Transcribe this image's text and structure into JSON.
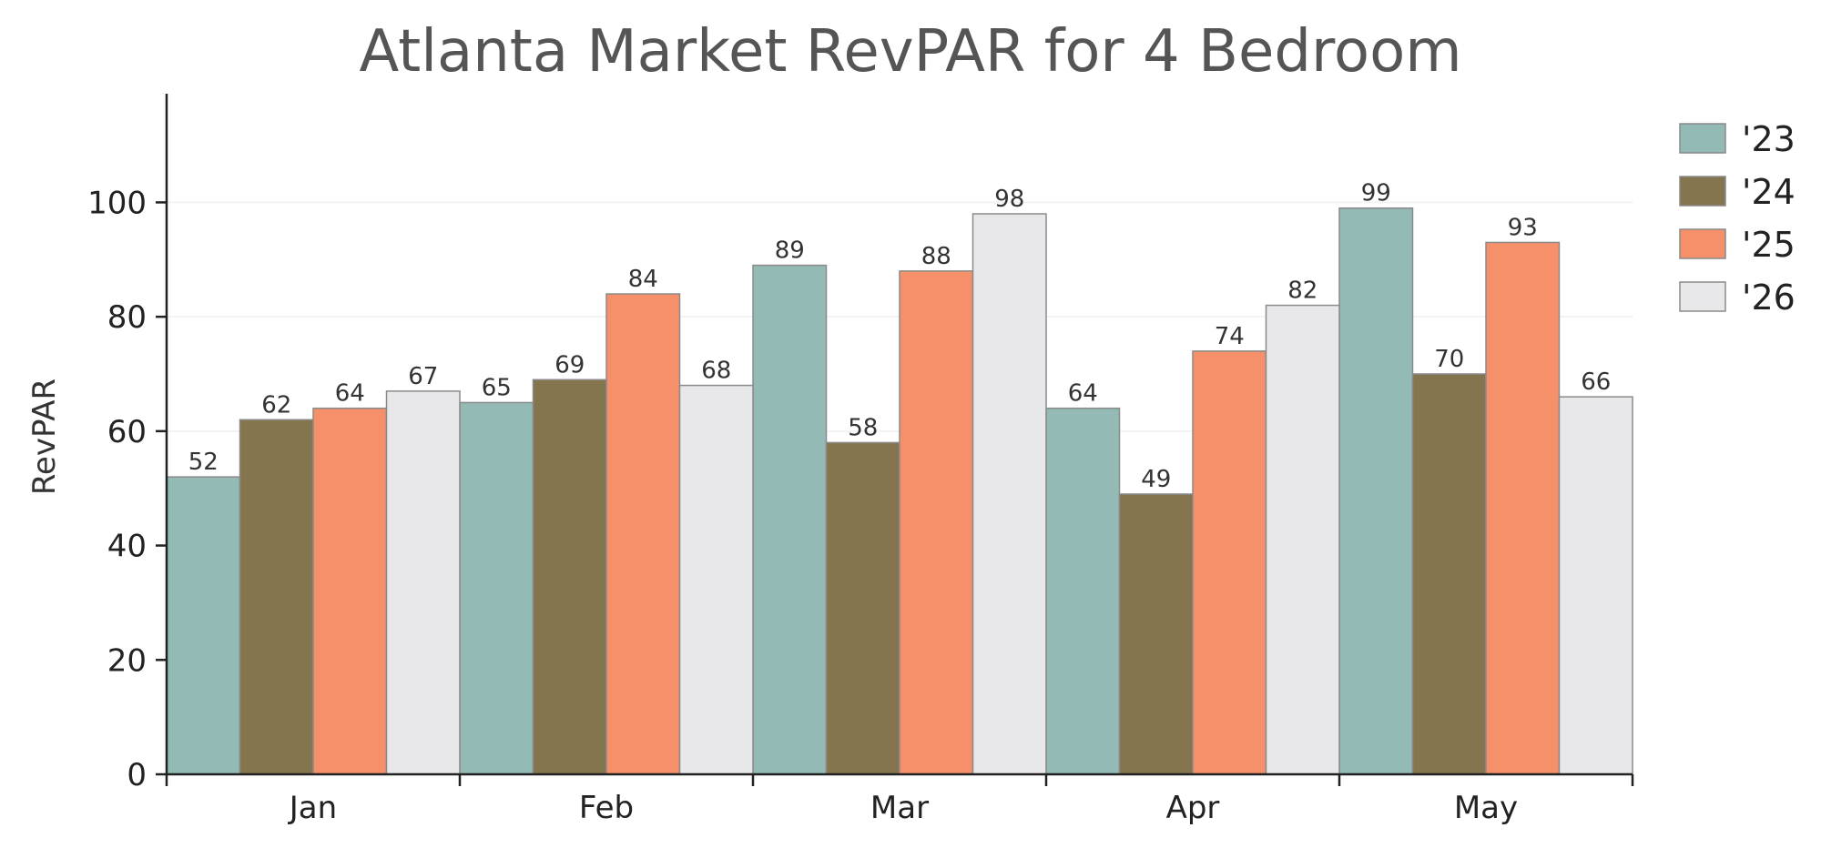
{
  "chart_data": {
    "type": "bar",
    "title": "Atlanta Market RevPAR for 4 Bedroom",
    "xlabel": "",
    "ylabel": "RevPAR",
    "categories": [
      "Jan",
      "Feb",
      "Mar",
      "Apr",
      "May"
    ],
    "series": [
      {
        "name": "'23",
        "color": "#93bab4",
        "values": [
          52,
          65,
          89,
          64,
          99
        ]
      },
      {
        "name": "'24",
        "color": "#85754e",
        "values": [
          62,
          69,
          58,
          49,
          70
        ]
      },
      {
        "name": "'25",
        "color": "#f5906a",
        "values": [
          64,
          84,
          88,
          74,
          93
        ]
      },
      {
        "name": "'26",
        "color": "#e8e8ea",
        "values": [
          67,
          68,
          98,
          82,
          66
        ]
      }
    ],
    "ylim": [
      0,
      119
    ],
    "yticks": [
      0,
      20,
      40,
      60,
      80,
      100
    ],
    "grid": "horizontal",
    "legend_position": "top-right"
  },
  "colors": {
    "bar_edge": "#8a8a8a",
    "axis": "#222222",
    "grid": "#f3f3f3"
  }
}
